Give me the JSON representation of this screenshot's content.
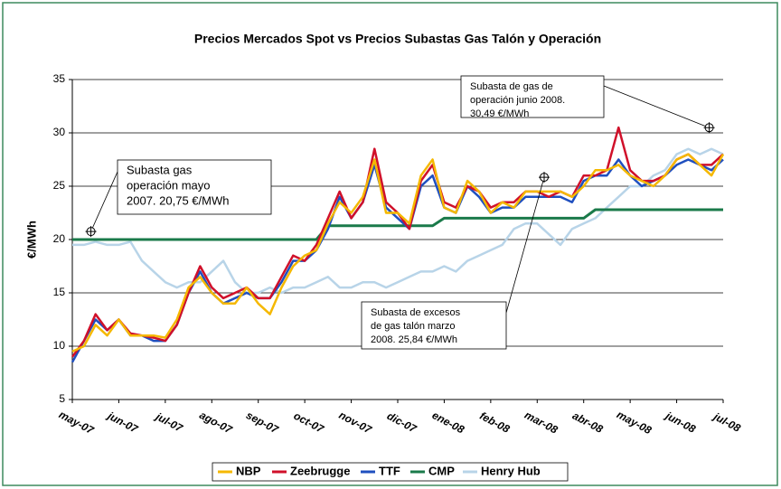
{
  "chart_data": {
    "type": "line",
    "title": "Precios Mercados Spot vs Precios Subastas Gas Talón y Operación",
    "y_label": "€/MWh",
    "x": [
      0,
      0.25,
      0.5,
      0.75,
      1,
      1.25,
      1.5,
      1.75,
      2,
      2.25,
      2.5,
      2.75,
      3,
      3.25,
      3.5,
      3.75,
      4,
      4.25,
      4.5,
      4.75,
      5,
      5.25,
      5.5,
      5.75,
      6,
      6.25,
      6.5,
      6.75,
      7,
      7.25,
      7.5,
      7.75,
      8,
      8.25,
      8.5,
      8.75,
      9,
      9.25,
      9.5,
      9.75,
      10,
      10.25,
      10.5,
      10.75,
      11,
      11.25,
      11.5,
      11.75,
      12,
      12.25,
      12.5,
      12.75,
      13,
      13.25,
      13.5,
      13.75,
      14
    ],
    "xlim": [
      0,
      14
    ],
    "xticks": [
      {
        "value": 0,
        "label": "may-07"
      },
      {
        "value": 1,
        "label": "jun-07"
      },
      {
        "value": 2,
        "label": "jul-07"
      },
      {
        "value": 3,
        "label": "ago-07"
      },
      {
        "value": 4,
        "label": "sep-07"
      },
      {
        "value": 5,
        "label": "oct-07"
      },
      {
        "value": 6,
        "label": "nov-07"
      },
      {
        "value": 7,
        "label": "dic-07"
      },
      {
        "value": 8,
        "label": "ene-08"
      },
      {
        "value": 9,
        "label": "feb-08"
      },
      {
        "value": 10,
        "label": "mar-08"
      },
      {
        "value": 11,
        "label": "abr-08"
      },
      {
        "value": 12,
        "label": "may-08"
      },
      {
        "value": 13,
        "label": "jun-08"
      },
      {
        "value": 14,
        "label": "jul-08"
      }
    ],
    "ylim": [
      5,
      35
    ],
    "yticks": [
      5,
      10,
      15,
      20,
      25,
      30,
      35
    ],
    "grid": true,
    "legend": "bottom",
    "series": [
      {
        "name": "NBP",
        "color": "#f5b800",
        "values": [
          9.5,
          10,
          12,
          11,
          12.5,
          11,
          11,
          11,
          10.8,
          12.5,
          15.5,
          16.5,
          15,
          14,
          14,
          15.5,
          14,
          13,
          15.5,
          17.5,
          18.5,
          19,
          21.5,
          23.5,
          22.5,
          24,
          27.5,
          22.5,
          22.5,
          21.5,
          26,
          27.5,
          23,
          22.5,
          25.5,
          24.5,
          22.5,
          23.5,
          23,
          24.5,
          24.5,
          24.5,
          24.5,
          24,
          25,
          26.5,
          26.5,
          27,
          26,
          25.5,
          25,
          26,
          27.5,
          28,
          27,
          26,
          28
        ]
      },
      {
        "name": "Zeebrugge",
        "color": "#d0102a",
        "values": [
          9,
          10.5,
          13,
          11.5,
          12.5,
          11.2,
          11,
          10.8,
          10.5,
          12,
          15,
          17.5,
          15.5,
          14.5,
          15,
          15.5,
          14.5,
          14.5,
          16.5,
          18.5,
          18,
          19.5,
          22,
          24.5,
          22,
          23.5,
          28.5,
          23.5,
          22.5,
          21,
          25.5,
          27,
          23.5,
          23,
          25,
          24.5,
          23,
          23.5,
          23.5,
          24.5,
          24.5,
          24,
          24.5,
          24,
          26,
          26,
          26.5,
          30.5,
          26.5,
          25.5,
          25.5,
          26,
          27.5,
          28,
          27,
          27,
          28
        ]
      },
      {
        "name": "TTF",
        "color": "#1f4fbf",
        "values": [
          8.5,
          10.5,
          12.5,
          11.5,
          12.5,
          11,
          11,
          10.5,
          10.5,
          12,
          15,
          17,
          15,
          14,
          14.5,
          15,
          14.5,
          14.5,
          16,
          18,
          18,
          19,
          21,
          24,
          22,
          23.5,
          27,
          23,
          22,
          21,
          25,
          26,
          23,
          22.5,
          25,
          24,
          22.5,
          23,
          23,
          24,
          24,
          24,
          24,
          23.5,
          25.5,
          26,
          26,
          27.5,
          26,
          25,
          25.5,
          26,
          27,
          27.5,
          27,
          26.5,
          27.5
        ]
      },
      {
        "name": "CMP",
        "color": "#1a7a4a",
        "values": [
          20,
          20,
          20,
          20,
          20,
          20,
          20,
          20,
          20,
          20,
          20,
          20,
          20,
          20,
          20,
          20,
          20,
          20,
          20,
          20,
          20,
          20,
          21.3,
          21.3,
          21.3,
          21.3,
          21.3,
          21.3,
          21.3,
          21.3,
          21.3,
          21.3,
          22,
          22,
          22,
          22,
          22,
          22,
          22,
          22,
          22,
          22,
          22,
          22,
          22,
          22.8,
          22.8,
          22.8,
          22.8,
          22.8,
          22.8,
          22.8,
          22.8,
          22.8,
          22.8,
          22.8,
          22.8
        ]
      },
      {
        "name": "Henry Hub",
        "color": "#b8d4e8",
        "values": [
          19.5,
          19.5,
          19.8,
          19.5,
          19.5,
          19.8,
          18,
          17,
          16,
          15.5,
          16,
          16,
          17,
          18,
          16,
          15,
          15,
          15.5,
          15,
          15.5,
          15.5,
          16,
          16.5,
          15.5,
          15.5,
          16,
          16,
          15.5,
          16,
          16.5,
          17,
          17,
          17.5,
          17,
          18,
          18.5,
          19,
          19.5,
          21,
          21.5,
          21.5,
          20.5,
          19.5,
          21,
          21.5,
          22,
          23,
          24,
          25,
          25,
          26,
          26.5,
          28,
          28.5,
          28,
          28.5,
          28
        ]
      }
    ],
    "annotations": [
      {
        "lines": [
          "Subasta gas",
          "operación mayo",
          "2007. 20,75 €/MWh"
        ],
        "x": 0.4,
        "y": 20.75
      },
      {
        "lines": [
          "Subasta de excesos",
          "de gas talón marzo",
          "2008. 25,84 €/MWh"
        ],
        "x": 10.15,
        "y": 25.84
      },
      {
        "lines": [
          "Subasta de gas de",
          "operación junio 2008.",
          "30,49 €/MWh"
        ],
        "x": 13.7,
        "y": 30.49
      }
    ]
  }
}
